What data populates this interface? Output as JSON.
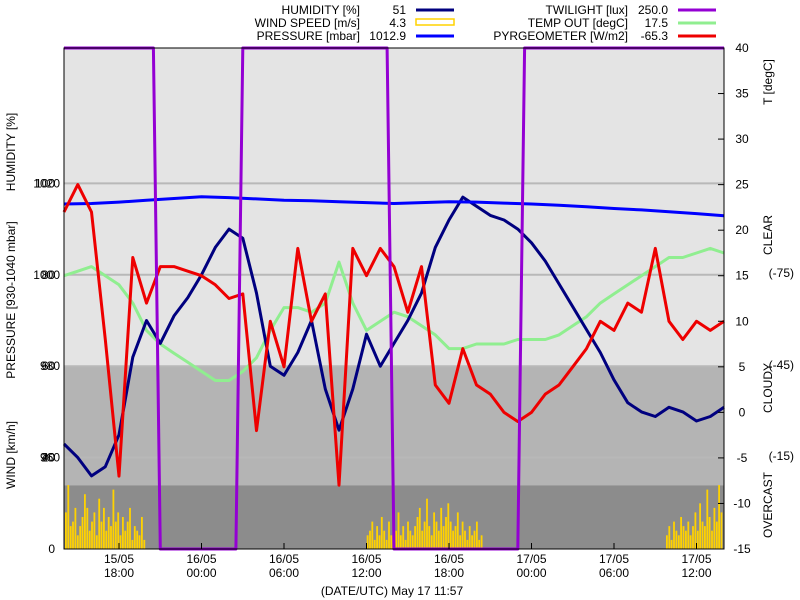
{
  "chart_data": {
    "type": "line",
    "xlabel": "(DATE/UTC) May 17 11:57",
    "x_ticks": [
      {
        "date": "15/05",
        "time": "18:00"
      },
      {
        "date": "16/05",
        "time": "00:00"
      },
      {
        "date": "16/05",
        "time": "06:00"
      },
      {
        "date": "16/05",
        "time": "12:00"
      },
      {
        "date": "16/05",
        "time": "18:00"
      },
      {
        "date": "17/05",
        "time": "00:00"
      },
      {
        "date": "17/05",
        "time": "06:00"
      },
      {
        "date": "17/05",
        "time": "12:00"
      }
    ],
    "x_range_hours": [
      -4,
      44
    ],
    "left_axes": {
      "humidity": {
        "label": "HUMIDITY [%]",
        "ticks": [
          "40",
          "60",
          "80",
          "100"
        ]
      },
      "pressure": {
        "label": "PRESSURE [930-1040 mbar]",
        "ticks": [
          "960",
          "980",
          "1000",
          "1020"
        ]
      },
      "wind": {
        "label": "WIND [km/h]",
        "ticks": [
          "0",
          "20"
        ]
      }
    },
    "right_axis": {
      "label": "T [degC]",
      "ticks": [
        "-15",
        "-10",
        "-5",
        "0",
        "5",
        "10",
        "15",
        "20",
        "25",
        "30",
        "35",
        "40"
      ],
      "range": [
        -15,
        40
      ]
    },
    "sky_labels": {
      "clear": "CLEAR",
      "cloudy": "CLOUDY",
      "overcast": "OVERCAST",
      "pyrg_ticks": [
        "(-75)",
        "(-45)",
        "(-15)"
      ]
    },
    "zones": {
      "clear_bg": "#e4e4e4",
      "cloudy_bg": "#b4b4b4",
      "overcast_bg": "#8c8c8c",
      "cloudy_top_degC": 5,
      "overcast_top_degC": -8
    },
    "legend": [
      {
        "key": "humidity",
        "name": "HUMIDITY [%]",
        "value": "51",
        "color": "#00007f",
        "style": "line"
      },
      {
        "key": "wind",
        "name": "WIND SPEED [m/s]",
        "value": "4.3",
        "color": "#ffd200",
        "style": "box"
      },
      {
        "key": "pressure",
        "name": "PRESSURE [mbar]",
        "value": "1012.9",
        "color": "#0000ff",
        "style": "line"
      },
      {
        "key": "twilight",
        "name": "TWILIGHT [lux]",
        "value": "250.0",
        "color": "#9400d3",
        "style": "line"
      },
      {
        "key": "temp",
        "name": "TEMP OUT [degC]",
        "value": "17.5",
        "color": "#90ee90",
        "style": "line"
      },
      {
        "key": "pyrg",
        "name": "PYRGEOMETER [W/m2]",
        "value": "-65.3",
        "color": "#ee0000",
        "style": "line"
      }
    ],
    "series": [
      {
        "key": "humidity",
        "name": "HUMIDITY [%]",
        "color": "#00007f",
        "unit": "%",
        "axis": "humidity",
        "x": [
          -4,
          -3,
          -2,
          -1,
          0,
          1,
          2,
          3,
          4,
          5,
          6,
          7,
          8,
          9,
          10,
          11,
          12,
          13,
          14,
          15,
          16,
          17,
          18,
          19,
          20,
          21,
          22,
          23,
          24,
          25,
          26,
          27,
          28,
          29,
          30,
          31,
          32,
          33,
          34,
          35,
          36,
          37,
          38,
          39,
          40,
          41,
          42,
          43,
          44
        ],
        "y": [
          43,
          40,
          36,
          38,
          45,
          62,
          70,
          65,
          71,
          75,
          80,
          86,
          90,
          88,
          76,
          60,
          58,
          63,
          70,
          55,
          46,
          55,
          67,
          60,
          65,
          70,
          76,
          86,
          92,
          97,
          95,
          93,
          92,
          90,
          87,
          83,
          78,
          73,
          68,
          63,
          57,
          52,
          50,
          49,
          51,
          50,
          48,
          49,
          51
        ]
      },
      {
        "key": "pressure",
        "name": "PRESSURE [mbar]",
        "color": "#0000ff",
        "unit": "mbar",
        "axis": "pressure",
        "x": [
          -4,
          -2,
          0,
          2,
          4,
          6,
          8,
          10,
          12,
          14,
          16,
          18,
          20,
          22,
          24,
          26,
          28,
          30,
          32,
          34,
          36,
          38,
          40,
          42,
          44
        ],
        "y": [
          1015.5,
          1015.6,
          1015.9,
          1016.3,
          1016.7,
          1017.1,
          1016.9,
          1016.6,
          1016.3,
          1016.2,
          1016.0,
          1015.8,
          1015.6,
          1015.8,
          1016.0,
          1015.9,
          1015.7,
          1015.5,
          1015.2,
          1014.9,
          1014.5,
          1014.2,
          1013.8,
          1013.4,
          1012.9
        ]
      },
      {
        "key": "temp",
        "name": "TEMP OUT [degC]",
        "color": "#90ee90",
        "unit": "degC",
        "axis": "temp",
        "x": [
          -4,
          -3,
          -2,
          -1,
          0,
          1,
          2,
          3,
          4,
          5,
          6,
          7,
          8,
          9,
          10,
          11,
          12,
          13,
          14,
          15,
          16,
          17,
          18,
          19,
          20,
          21,
          22,
          23,
          24,
          25,
          26,
          27,
          28,
          29,
          30,
          31,
          32,
          33,
          34,
          35,
          36,
          37,
          38,
          39,
          40,
          41,
          42,
          43,
          44
        ],
        "y": [
          15,
          15.5,
          16,
          15,
          14,
          12,
          9,
          7.5,
          6.5,
          5.5,
          4.5,
          3.5,
          3.5,
          4.5,
          6,
          9,
          11.5,
          11.5,
          11,
          12,
          16.5,
          12,
          9,
          10,
          11,
          10.5,
          9.5,
          8.5,
          7,
          7,
          7.5,
          7.5,
          7.5,
          8,
          8,
          8,
          8.5,
          9.5,
          10.5,
          12,
          13,
          14,
          15,
          16,
          17,
          17,
          17.5,
          18,
          17.5
        ]
      },
      {
        "key": "pyrg",
        "name": "PYRGEOMETER [W/m2]",
        "color": "#ee0000",
        "unit": "degC-scale",
        "axis": "temp",
        "x": [
          -4,
          -3,
          -2,
          -1,
          0,
          1,
          2,
          3,
          4,
          5,
          6,
          7,
          8,
          9,
          10,
          11,
          12,
          13,
          14,
          15,
          16,
          17,
          18,
          19,
          20,
          21,
          22,
          23,
          24,
          25,
          26,
          27,
          28,
          29,
          30,
          31,
          32,
          33,
          34,
          35,
          36,
          37,
          38,
          39,
          40,
          41,
          42,
          43,
          44
        ],
        "y": [
          22,
          25,
          22,
          8,
          -7,
          17,
          12,
          16,
          16,
          15.5,
          15,
          14,
          12.5,
          13,
          -2,
          10,
          5,
          18,
          10,
          13,
          -8,
          18,
          15,
          18,
          16,
          11,
          16,
          3,
          1,
          7,
          3,
          2,
          0,
          -1,
          0,
          2,
          3,
          5,
          7,
          10,
          9,
          12,
          11,
          18,
          10,
          8,
          10,
          9,
          10
        ]
      },
      {
        "key": "twilight",
        "name": "TWILIGHT [lux]",
        "color": "#9400d3",
        "unit": "on/off",
        "axis": "temp",
        "x": [
          -4,
          2.5,
          3.0,
          8.5,
          9.0,
          19.5,
          20.0,
          29.0,
          29.5,
          44
        ],
        "y": [
          40,
          40,
          -15,
          -15,
          40,
          40,
          -15,
          -15,
          40,
          40
        ]
      }
    ],
    "wind_bars": {
      "name": "WIND SPEED [m/s]",
      "color": "#ffd200",
      "unit": "km/h",
      "values": [
        8,
        14,
        5,
        6,
        9,
        3,
        5,
        7,
        12,
        9,
        4,
        6,
        8,
        3,
        11,
        6,
        9,
        4,
        7,
        5,
        13,
        6,
        8,
        3,
        7,
        4,
        6,
        9,
        2,
        5,
        4,
        3,
        7,
        2,
        0,
        0,
        0,
        0,
        0,
        0,
        0,
        0,
        0,
        0,
        0,
        0,
        0,
        0,
        0,
        0,
        0,
        0,
        0,
        0,
        0,
        0,
        0,
        0,
        0,
        0,
        0,
        0,
        0,
        0,
        0,
        0,
        0,
        0,
        0,
        0,
        0,
        0,
        0,
        0,
        0,
        0,
        0,
        0,
        0,
        0,
        0,
        0,
        0,
        0,
        0,
        0,
        0,
        0,
        0,
        0,
        0,
        0,
        0,
        0,
        0,
        0,
        0,
        0,
        0,
        0,
        0,
        0,
        0,
        0,
        0,
        0,
        0,
        0,
        0,
        0,
        0,
        0,
        0,
        0,
        0,
        0,
        0,
        0,
        0,
        0,
        0,
        0,
        0,
        0,
        0,
        0,
        0,
        3,
        4,
        6,
        2,
        5,
        3,
        7,
        4,
        2,
        6,
        3,
        5,
        4,
        8,
        3,
        5,
        2,
        6,
        4,
        3,
        5,
        7,
        9,
        4,
        6,
        11,
        5,
        3,
        8,
        6,
        4,
        9,
        5,
        7,
        10,
        6,
        4,
        5,
        8,
        3,
        6,
        4,
        2,
        5,
        3,
        4,
        6,
        2,
        3,
        0,
        0,
        0,
        0,
        0,
        0,
        0,
        0,
        0,
        0,
        0,
        0,
        0,
        0,
        0,
        0,
        0,
        0,
        0,
        0,
        0,
        0,
        0,
        0,
        0,
        0,
        0,
        0,
        0,
        0,
        0,
        0,
        0,
        0,
        0,
        0,
        0,
        0,
        0,
        0,
        0,
        0,
        0,
        0,
        0,
        0,
        0,
        0,
        0,
        0,
        0,
        0,
        0,
        0,
        0,
        0,
        0,
        0,
        0,
        0,
        0,
        0,
        0,
        0,
        0,
        0,
        0,
        0,
        0,
        0,
        0,
        0,
        0,
        0,
        0,
        0,
        0,
        3,
        5,
        2,
        6,
        4,
        3,
        7,
        5,
        4,
        6,
        3,
        5,
        8,
        4,
        10,
        6,
        5,
        13,
        7,
        4,
        9,
        6,
        14,
        8
      ]
    }
  }
}
